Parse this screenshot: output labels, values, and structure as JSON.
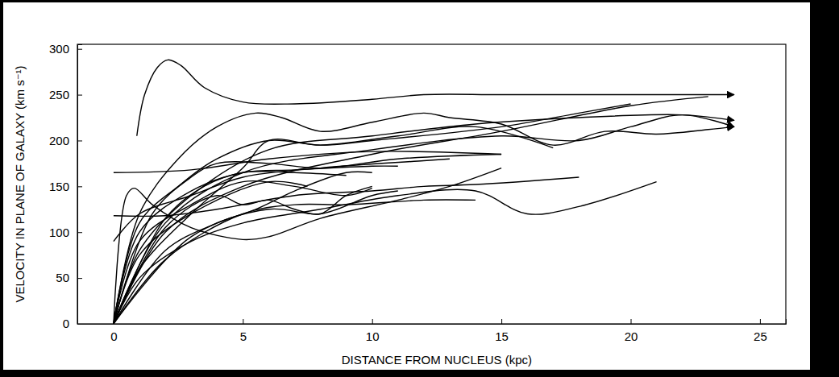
{
  "chart_data": {
    "type": "line",
    "x_label": "DISTANCE FROM NUCLEUS (kpc)",
    "y_label": "VELOCITY IN PLANE OF GALAXY (km s⁻¹)",
    "xlim": [
      -1.4,
      26
    ],
    "ylim": [
      0,
      305
    ],
    "xticks": [
      0,
      5,
      10,
      15,
      20,
      25
    ],
    "yticks": [
      0,
      50,
      100,
      150,
      200,
      250,
      300
    ],
    "series": [
      {
        "color": "#000000",
        "marker": "arrow",
        "x": [
          0.9,
          1.2,
          1.7,
          2.1,
          2.6,
          3.5,
          5,
          7,
          10,
          12,
          15,
          20,
          24
        ],
        "values": [
          205,
          250,
          280,
          288,
          282,
          258,
          242,
          240,
          245,
          250,
          250,
          250,
          250
        ]
      },
      {
        "color": "#000000",
        "marker": "arrow",
        "x": [
          0,
          1,
          2.5,
          4,
          5.5,
          6.5,
          8,
          10,
          12,
          13,
          15,
          17,
          19,
          21,
          23,
          24
        ],
        "values": [
          0,
          120,
          180,
          215,
          230,
          225,
          210,
          220,
          230,
          225,
          218,
          195,
          210,
          207,
          212,
          215
        ]
      },
      {
        "color": "#000000",
        "x": [
          0,
          2,
          5,
          10,
          15,
          20,
          23
        ],
        "values": [
          0,
          100,
          150,
          185,
          210,
          238,
          248
        ]
      },
      {
        "color": "#000000",
        "marker": "arrow",
        "x": [
          0,
          1,
          3,
          6,
          10,
          14,
          18,
          22,
          24
        ],
        "values": [
          0,
          80,
          140,
          190,
          205,
          218,
          225,
          228,
          222
        ]
      },
      {
        "color": "#000000",
        "marker": "arrow",
        "x": [
          0,
          2,
          5,
          10,
          15,
          18,
          20,
          22,
          24
        ],
        "values": [
          0,
          110,
          165,
          190,
          205,
          200,
          215,
          228,
          215
        ]
      },
      {
        "color": "#000000",
        "x": [
          0,
          1,
          3,
          5,
          6,
          8,
          11,
          14,
          17
        ],
        "values": [
          0,
          60,
          120,
          170,
          200,
          195,
          205,
          215,
          192
        ]
      },
      {
        "color": "#000000",
        "x": [
          0,
          3,
          6,
          10,
          15
        ],
        "values": [
          165,
          168,
          180,
          188,
          185
        ]
      },
      {
        "color": "#000000",
        "x": [
          0,
          0.5,
          0.8,
          1.5,
          3,
          5,
          6,
          8,
          11,
          13,
          15
        ],
        "values": [
          0,
          140,
          148,
          130,
          105,
          92,
          95,
          115,
          135,
          150,
          170
        ]
      },
      {
        "color": "#000000",
        "x": [
          0,
          1,
          3,
          5,
          8,
          11,
          14,
          16,
          18,
          21
        ],
        "values": [
          0,
          50,
          90,
          110,
          125,
          140,
          145,
          120,
          128,
          155
        ]
      },
      {
        "color": "#000000",
        "x": [
          0,
          2,
          5,
          7,
          9,
          12,
          14
        ],
        "values": [
          0,
          70,
          120,
          130,
          130,
          135,
          135
        ]
      },
      {
        "color": "#000000",
        "x": [
          0,
          3,
          6,
          8,
          10,
          11
        ],
        "values": [
          0,
          95,
          125,
          120,
          140,
          145
        ]
      },
      {
        "color": "#000000",
        "x": [
          0,
          2,
          4,
          7,
          10,
          12,
          14,
          18
        ],
        "values": [
          118,
          118,
          125,
          140,
          145,
          150,
          152,
          160
        ]
      },
      {
        "color": "#000000",
        "x": [
          0,
          1,
          3,
          6,
          7.5
        ],
        "values": [
          0,
          75,
          120,
          155,
          150
        ]
      },
      {
        "color": "#000000",
        "x": [
          0,
          2,
          4,
          5.5,
          7,
          9,
          10
        ],
        "values": [
          0,
          80,
          110,
          125,
          145,
          165,
          165
        ]
      },
      {
        "color": "#000000",
        "x": [
          0,
          1,
          3,
          5,
          7,
          10,
          11
        ],
        "values": [
          0,
          100,
          145,
          165,
          168,
          172,
          172
        ]
      },
      {
        "color": "#000000",
        "x": [
          0,
          1,
          3,
          5,
          8,
          12,
          13
        ],
        "values": [
          90,
          120,
          140,
          160,
          170,
          178,
          180
        ]
      },
      {
        "color": "#000000",
        "x": [
          0,
          1,
          2.5,
          4,
          6,
          8,
          10,
          15,
          18,
          20
        ],
        "values": [
          0,
          110,
          150,
          180,
          200,
          195,
          200,
          215,
          230,
          240
        ]
      },
      {
        "color": "#000000",
        "x": [
          0,
          2,
          4,
          5,
          6,
          7,
          8,
          9,
          10
        ],
        "values": [
          0,
          105,
          140,
          130,
          135,
          125,
          120,
          140,
          150
        ]
      },
      {
        "color": "#000000",
        "x": [
          0,
          1,
          3,
          5,
          7,
          9,
          10
        ],
        "values": [
          0,
          90,
          130,
          155,
          150,
          140,
          148
        ]
      },
      {
        "color": "#000000",
        "x": [
          0,
          1.5,
          3,
          4,
          6,
          8,
          11,
          15
        ],
        "values": [
          0,
          120,
          160,
          175,
          175,
          170,
          180,
          185
        ]
      },
      {
        "color": "#000000",
        "x": [
          0,
          2,
          3.5,
          5,
          7,
          9
        ],
        "values": [
          0,
          115,
          150,
          165,
          165,
          162
        ]
      }
    ]
  }
}
